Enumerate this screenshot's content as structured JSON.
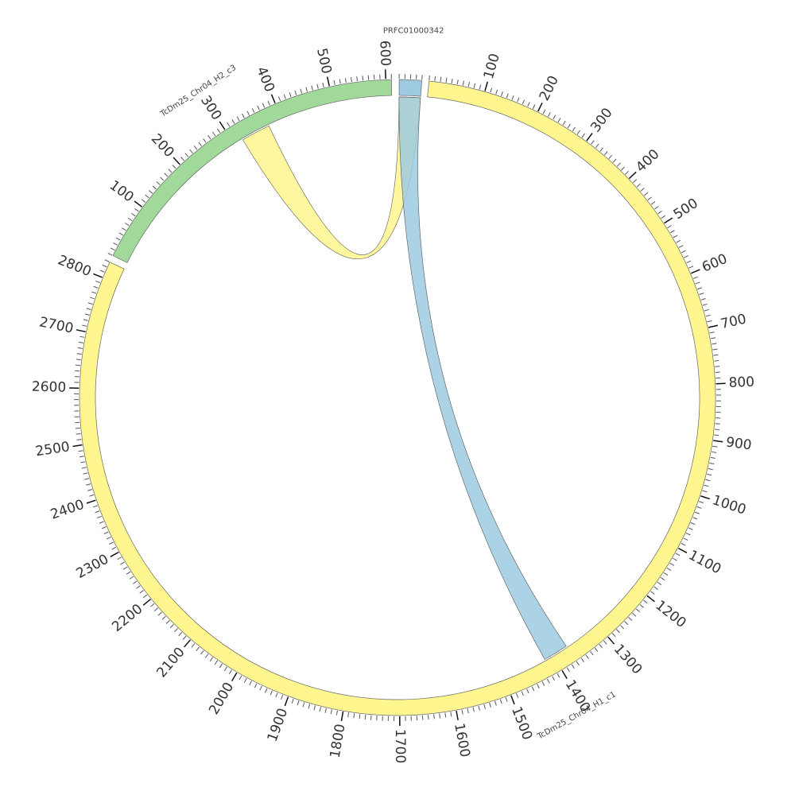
{
  "segments": [
    {
      "name": "PRFC01000342",
      "length": 40,
      "color": "#9ecae1",
      "ticks": [],
      "minor_tick_interval": 10
    },
    {
      "name": "TcDm25_Chr04_H1_c1",
      "length": 2830,
      "color": "#fff68f",
      "ticks": [
        100,
        200,
        300,
        400,
        500,
        600,
        700,
        800,
        900,
        1000,
        1100,
        1200,
        1300,
        1400,
        1500,
        1600,
        1700,
        1800,
        1900,
        2000,
        2100,
        2200,
        2300,
        2400,
        2500,
        2600,
        2700,
        2800
      ],
      "minor_tick_interval": 10
    },
    {
      "name": "TcDm25_Chr04_H2_c3",
      "length": 610,
      "color": "#a1d99b",
      "ticks": [
        100,
        200,
        300,
        400,
        500,
        600
      ],
      "minor_tick_interval": 10
    }
  ],
  "links": [
    {
      "color": "#fff68f",
      "source": {
        "segment": "PRFC01000342",
        "start": 0,
        "end": 40
      },
      "target": {
        "segment": "TcDm25_Chr04_H2_c3",
        "start": 318,
        "end": 373
      }
    },
    {
      "color": "#9ecae1",
      "source": {
        "segment": "PRFC01000342",
        "start": 0,
        "end": 40
      },
      "target": {
        "segment": "TcDm25_Chr04_H1_c1",
        "start": 1370,
        "end": 1417
      }
    }
  ]
}
